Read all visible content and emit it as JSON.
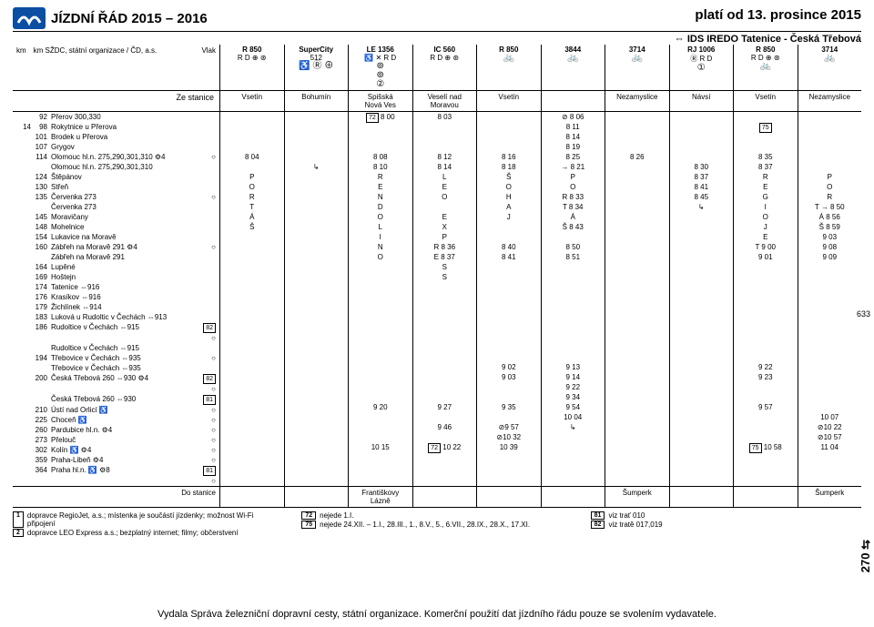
{
  "header": {
    "title": "JÍZDNÍ ŘÁD 2015 – 2016",
    "valid_from": "platí od 13. prosince 2015",
    "ids_line": "⇔ IDS IREDO Tatenice - Česká Třebová"
  },
  "train_header": {
    "left_labels": [
      "km",
      "km SŽDC, státní organizace / ČD, a.s.",
      "Vlak"
    ],
    "cols": [
      {
        "name": "R 850",
        "sub": "R D ⊕ ⊛",
        "sym": ""
      },
      {
        "name": "SuperCity",
        "sub": "512",
        "sym": "♿ Ⓡ ⊕"
      },
      {
        "name": "LE 1356",
        "sub": "♿ ✕ R D",
        "sym": "⊚\n⊚\n②"
      },
      {
        "name": "IC 560",
        "sub": "R D ⊕ ⊛",
        "sym": ""
      },
      {
        "name": "R 850",
        "sub": "",
        "sym": "🚲"
      },
      {
        "name": "3844",
        "sub": "",
        "sym": "🚲"
      },
      {
        "name": "3714",
        "sub": "",
        "sym": "🚲"
      },
      {
        "name": "RJ 1006",
        "sub": "Ⓡ R D",
        "sym": "①"
      },
      {
        "name": "R 850",
        "sub": "R D ⊕ ⊛",
        "sym": "🚲"
      },
      {
        "name": "3714",
        "sub": "",
        "sym": "🚲"
      }
    ]
  },
  "origin_row": {
    "label": "Ze stanice",
    "origins": [
      "Vsetín",
      "Bohumín",
      "Spišská\nNová Ves",
      "Veselí nad\nMoravou",
      "Vsetín",
      "",
      "Nezamyslice",
      "Návsí",
      "Vsetín",
      "Nezamyslice"
    ]
  },
  "stations": [
    {
      "km1": "",
      "km2": "92",
      "name": "Přerov 300,330",
      "sym": ""
    },
    {
      "km1": "14",
      "km2": "98",
      "name": "Rokytnice u Přerova",
      "sym": ""
    },
    {
      "km1": "",
      "km2": "101",
      "name": "Brodek u Přerova",
      "sym": ""
    },
    {
      "km1": "",
      "km2": "107",
      "name": "Grygov",
      "sym": ""
    },
    {
      "km1": "",
      "km2": "114",
      "name": "Olomouc hl.n. 275,290,301,310 ⚙4",
      "sym": "○"
    },
    {
      "km1": "",
      "km2": "",
      "name": "Olomouc hl.n. 275,290,301,310",
      "sym": ""
    },
    {
      "km1": "",
      "km2": "124",
      "name": "Štěpánov",
      "sym": ""
    },
    {
      "km1": "",
      "km2": "130",
      "name": "Střeň",
      "sym": ""
    },
    {
      "km1": "",
      "km2": "135",
      "name": "Červenka 273",
      "sym": "○"
    },
    {
      "km1": "",
      "km2": "",
      "name": "Červenka 273",
      "sym": ""
    },
    {
      "km1": "",
      "km2": "145",
      "name": "Moravičany",
      "sym": ""
    },
    {
      "km1": "",
      "km2": "148",
      "name": "Mohelnice",
      "sym": ""
    },
    {
      "km1": "",
      "km2": "154",
      "name": "Lukavice na Moravě",
      "sym": ""
    },
    {
      "km1": "",
      "km2": "160",
      "name": "Zábřeh na Moravě 291 ⚙4",
      "sym": "○"
    },
    {
      "km1": "",
      "km2": "",
      "name": "Zábřeh na Moravě 291",
      "sym": ""
    },
    {
      "km1": "",
      "km2": "164",
      "name": "Lupěné",
      "sym": ""
    },
    {
      "km1": "",
      "km2": "169",
      "name": "Hoštejn",
      "sym": ""
    },
    {
      "km1": "",
      "km2": "174",
      "name": "Tatenice ⇔916",
      "sym": ""
    },
    {
      "km1": "",
      "km2": "176",
      "name": "Krasíkov ⇔916",
      "sym": ""
    },
    {
      "km1": "",
      "km2": "179",
      "name": "Žichlínek ⇔914",
      "sym": ""
    },
    {
      "km1": "",
      "km2": "183",
      "name": "Luková u Rudoltic v Čechách ⇔913",
      "sym": ""
    },
    {
      "km1": "",
      "km2": "186",
      "name": "Rudoltice v Čechách ⇔915",
      "sym": "82 ○",
      "box": true
    },
    {
      "km1": "",
      "km2": "",
      "name": "Rudoltice v Čechách ⇔915",
      "sym": ""
    },
    {
      "km1": "",
      "km2": "194",
      "name": "Třebovice v Čechách ⇔935",
      "sym": "○"
    },
    {
      "km1": "",
      "km2": "",
      "name": "Třebovice v Čechách ⇔935",
      "sym": ""
    },
    {
      "km1": "",
      "km2": "200",
      "name": "Česká Třebová 260 ⇔930 ⚙4",
      "sym": "82 ○",
      "box": true
    },
    {
      "km1": "",
      "km2": "",
      "name": "Česká Třebová 260 ⇔930",
      "sym": "81",
      "box": true
    },
    {
      "km1": "",
      "km2": "210",
      "name": "Ústí nad Orlicí ♿",
      "sym": "○"
    },
    {
      "km1": "",
      "km2": "225",
      "name": "Choceň ♿",
      "sym": "○"
    },
    {
      "km1": "",
      "km2": "260",
      "name": "Pardubice hl.n. ⚙4",
      "sym": "○"
    },
    {
      "km1": "",
      "km2": "273",
      "name": "Přelouč",
      "sym": "○"
    },
    {
      "km1": "",
      "km2": "302",
      "name": "Kolín ♿ ⚙4",
      "sym": "○"
    },
    {
      "km1": "",
      "km2": "359",
      "name": "Praha-Libeň ⚙4",
      "sym": "○"
    },
    {
      "km1": "",
      "km2": "364",
      "name": "Praha hl.n. ♿ ⚙8",
      "sym": "81 ○",
      "box": true
    }
  ],
  "times": [
    [
      "",
      "",
      "72  8 00",
      "8 03",
      "",
      "⊘ 8 06",
      "",
      "",
      "",
      ""
    ],
    [
      "",
      "",
      "",
      "",
      "",
      "8 11",
      "",
      "",
      "75",
      ""
    ],
    [
      "",
      "",
      "",
      "",
      "",
      "8 14",
      "",
      "",
      "",
      ""
    ],
    [
      "",
      "",
      "",
      "",
      "",
      "8 19",
      "",
      "",
      "",
      ""
    ],
    [
      "8 04",
      "",
      "8 08",
      "8 12",
      "8 16",
      "8 25",
      "8 26",
      "",
      "8 35",
      ""
    ],
    [
      "",
      "↳",
      "8 10",
      "8 14",
      "8 18",
      "→   8 21",
      "",
      "8 30",
      "8 37",
      ""
    ],
    [
      "P",
      "",
      "R",
      "L",
      "Š",
      "P",
      "",
      "8 37",
      "R",
      "P"
    ],
    [
      "O",
      "",
      "E",
      "E",
      "O",
      "O",
      "",
      "8 41",
      "E",
      "O"
    ],
    [
      "R",
      "",
      "N",
      "O",
      "H",
      "R   8 33",
      "",
      "8 45",
      "G",
      "R"
    ],
    [
      "T",
      "",
      "D",
      "",
      "A",
      "T   8 34",
      "",
      "↳",
      "I",
      "T   →   8 50"
    ],
    [
      "Á",
      "",
      "O",
      "E",
      "J",
      "Á",
      "",
      "",
      "O",
      "Á        8 56"
    ],
    [
      "Š",
      "",
      "L",
      "X",
      "",
      "Š   8 43",
      "",
      "",
      "J",
      "Š        8 59"
    ],
    [
      "",
      "",
      "I",
      "P",
      "",
      "",
      "",
      "",
      "E",
      "       9 03"
    ],
    [
      "",
      "",
      "N",
      "R   8 36",
      "8 40",
      "8 50",
      "",
      "",
      "T   9 00",
      "       9 08"
    ],
    [
      "",
      "",
      "O",
      "E   8 37",
      "8 41",
      "8 51",
      "",
      "",
      "9 01",
      "       9 09"
    ],
    [
      "",
      "",
      "",
      "S",
      "",
      "",
      "",
      "",
      "",
      ""
    ],
    [
      "",
      "",
      "",
      "S",
      "",
      "",
      "",
      "",
      "",
      ""
    ],
    [
      "",
      "",
      "",
      "",
      "",
      "",
      "",
      "",
      "",
      ""
    ],
    [
      "",
      "",
      "",
      "",
      "",
      "",
      "",
      "",
      "",
      ""
    ],
    [
      "",
      "",
      "",
      "",
      "",
      "",
      "",
      "",
      "",
      ""
    ],
    [
      "",
      "",
      "",
      "",
      "",
      "",
      "",
      "",
      "",
      ""
    ],
    [
      "",
      "",
      "",
      "",
      "",
      "",
      "",
      "",
      "",
      ""
    ],
    [
      "",
      "",
      "",
      "",
      "",
      "",
      "",
      "",
      "",
      ""
    ],
    [
      "",
      "",
      "",
      "",
      "",
      "",
      "",
      "",
      "",
      ""
    ],
    [
      "",
      "",
      "",
      "",
      "",
      "",
      "",
      "",
      "",
      ""
    ],
    [
      "",
      "",
      "",
      "",
      "9 02",
      "9 13",
      "",
      "",
      "9 22",
      ""
    ],
    [
      "",
      "",
      "",
      "",
      "9 03",
      "9 14",
      "",
      "",
      "9 23",
      ""
    ],
    [
      "",
      "",
      "",
      "",
      "",
      "9 22",
      "",
      "",
      "",
      ""
    ],
    [
      "",
      "",
      "",
      "",
      "",
      "9 34",
      "",
      "",
      "",
      ""
    ],
    [
      "",
      "",
      "9 20",
      "9 27",
      "9 35",
      "9 54",
      "",
      "",
      "9 57",
      ""
    ],
    [
      "",
      "",
      "",
      "",
      "",
      "10 04",
      "",
      "",
      "",
      "10 07"
    ],
    [
      "",
      "",
      "",
      "9 46",
      "⊘9 57",
      "↳",
      "",
      "",
      "",
      "⊘10 22"
    ],
    [
      "",
      "",
      "",
      "",
      "⊘10 32",
      "",
      "",
      "",
      "",
      "⊘10 57"
    ],
    [
      "",
      "",
      "10 15",
      "72  10 22",
      "10 39",
      "",
      "",
      "",
      "75  10 58",
      "11 04"
    ]
  ],
  "dest_row": {
    "label": "Do stanice",
    "dests": [
      "",
      "",
      "Františkovy\nLázně",
      "",
      "",
      "",
      "Šumperk",
      "",
      "",
      "Šumperk"
    ]
  },
  "notes": {
    "left": [
      {
        "num": "1",
        "text": "dopravce RegioJet, a.s.; místenka je součástí jízdenky; možnost Wi-Fi připojení"
      },
      {
        "num": "2",
        "text": "dopravce LEO Express a.s.; bezplatný internet; filmy; občerstvení"
      }
    ],
    "mid": [
      {
        "num": "72",
        "text": "nejede 1.I."
      },
      {
        "num": "75",
        "text": "nejede 24.XII. – 1.I., 28.III., 1., 8.V., 5., 6.VII., 28.IX., 28.X., 17.XI."
      }
    ],
    "right": [
      {
        "num": "81",
        "text": "viz trať 010"
      },
      {
        "num": "82",
        "text": "viz tratě 017,019"
      }
    ]
  },
  "side": {
    "page": "633",
    "route": "270 ⇆"
  },
  "footer": "Vydala Správa železniční dopravní cesty, státní organizace. Komerční použití dat jízdního řádu pouze se svolením vydavatele.",
  "colors": {
    "logo_bg": "#0b4ea2",
    "border": "#000000",
    "bg": "#ffffff"
  }
}
